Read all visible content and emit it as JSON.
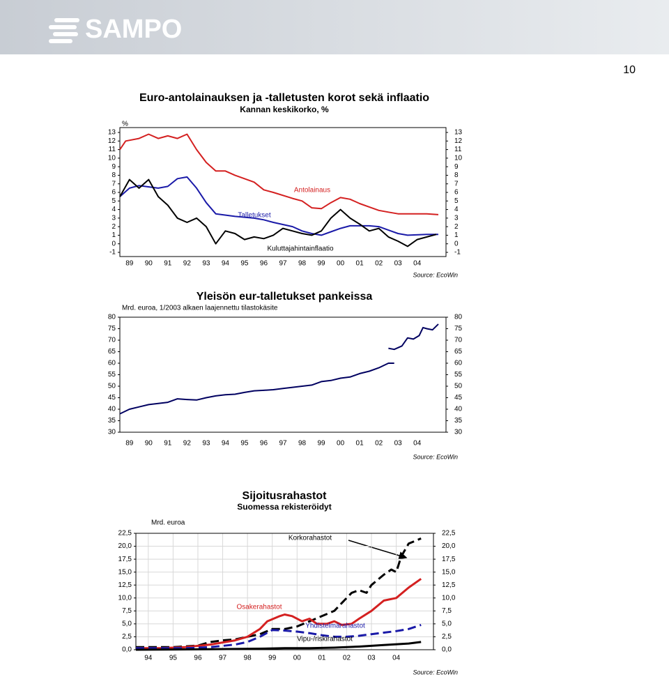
{
  "header": {
    "logo": "SAMPO",
    "page_number": "10"
  },
  "chart_data": [
    {
      "type": "line",
      "title": "Euro-antolainauksen ja -talletusten korot sekä inflaatio",
      "subtitle": "Kannan keskikorko, %",
      "ylabel": "%",
      "source": "Source: EcoWin",
      "xlim": [
        1989,
        2006
      ],
      "ylim": [
        -1,
        13
      ],
      "yticks": [
        13,
        12,
        11,
        10,
        9,
        8,
        7,
        6,
        5,
        4,
        3,
        2,
        1,
        0,
        -1
      ],
      "grid": false,
      "right_axis": true,
      "xticks": [
        {
          "value": 1989.5,
          "label": "89"
        },
        {
          "value": 1990.5,
          "label": "90"
        },
        {
          "value": 1991.5,
          "label": "91"
        },
        {
          "value": 1992.5,
          "label": "92"
        },
        {
          "value": 1993.5,
          "label": "93"
        },
        {
          "value": 1994.5,
          "label": "94"
        },
        {
          "value": 1995.5,
          "label": "95"
        },
        {
          "value": 1996.5,
          "label": "96"
        },
        {
          "value": 1997.5,
          "label": "97"
        },
        {
          "value": 1998.5,
          "label": "98"
        },
        {
          "value": 1999.5,
          "label": "99"
        },
        {
          "value": 2000.5,
          "label": "00"
        },
        {
          "value": 2001.5,
          "label": "01"
        },
        {
          "value": 2002.5,
          "label": "02"
        },
        {
          "value": 2003.5,
          "label": "03"
        },
        {
          "value": 2004.5,
          "label": "04"
        }
      ],
      "series": [
        {
          "name": "Antolainaus",
          "color": "#d42020",
          "dash": false,
          "x": [
            1989.0,
            1989.3,
            1990.0,
            1990.5,
            1991.0,
            1991.5,
            1992.0,
            1992.5,
            1993.0,
            1993.5,
            1994.0,
            1994.5,
            1995.0,
            1996.0,
            1996.5,
            1997.0,
            1998.0,
            1998.5,
            1999.0,
            1999.5,
            2000.0,
            2000.5,
            2001.0,
            2001.5,
            2002.0,
            2002.5,
            2003.0,
            2003.5,
            2004.0,
            2005.0,
            2005.6
          ],
          "values": [
            11,
            12,
            12.3,
            12.8,
            12.3,
            12.6,
            12.3,
            12.8,
            11,
            9.5,
            8.5,
            8.5,
            8.0,
            7.2,
            6.3,
            6.0,
            5.3,
            5.0,
            4.2,
            4.1,
            4.8,
            5.4,
            5.2,
            4.7,
            4.3,
            3.9,
            3.7,
            3.5,
            3.5,
            3.5,
            3.4
          ]
        },
        {
          "name": "Talletukset",
          "color": "#1a1aa8",
          "dash": false,
          "x": [
            1989.0,
            1989.5,
            1990.0,
            1991.0,
            1991.5,
            1992.0,
            1992.5,
            1993.0,
            1993.5,
            1994.0,
            1995.0,
            1996.0,
            1996.5,
            1997.0,
            1998.0,
            1998.5,
            1999.0,
            1999.5,
            2000.0,
            2000.5,
            2001.0,
            2002.0,
            2002.5,
            2003.0,
            2003.5,
            2004.0,
            2005.0,
            2005.6
          ],
          "values": [
            5.5,
            6.5,
            6.8,
            6.5,
            6.7,
            7.6,
            7.8,
            6.5,
            4.8,
            3.5,
            3.2,
            3.0,
            2.8,
            2.5,
            2.0,
            1.5,
            1.2,
            1.0,
            1.4,
            1.8,
            2.1,
            2.1,
            2.0,
            1.6,
            1.2,
            1.0,
            1.1,
            1.1
          ]
        },
        {
          "name": "Kuluttajahintainflaatio",
          "color": "#000000",
          "dash": false,
          "x": [
            1989.0,
            1989.5,
            1990.0,
            1990.5,
            1991.0,
            1991.5,
            1992.0,
            1992.5,
            1993.0,
            1993.5,
            1994.0,
            1994.5,
            1995.0,
            1995.5,
            1996.0,
            1996.5,
            1997.0,
            1997.5,
            1998.0,
            1998.5,
            1999.0,
            1999.5,
            2000.0,
            2000.5,
            2001.0,
            2001.5,
            2002.0,
            2002.5,
            2003.0,
            2003.5,
            2004.0,
            2004.5,
            2005.0,
            2005.5
          ],
          "values": [
            5.5,
            7.5,
            6.5,
            7.5,
            5.5,
            4.5,
            3.0,
            2.5,
            3.0,
            2.0,
            0.0,
            1.5,
            1.2,
            0.5,
            0.8,
            0.6,
            1.0,
            1.8,
            1.5,
            1.2,
            1.0,
            1.5,
            3.0,
            4.0,
            3.0,
            2.3,
            1.5,
            1.8,
            0.8,
            0.3,
            -0.3,
            0.5,
            0.8,
            1.1
          ]
        }
      ]
    },
    {
      "type": "line",
      "title": "Yleisön eur-talletukset pankeissa",
      "subtitle": "Mrd. euroa, 1/2003 alkaen laajennettu tilastokäsite",
      "source": "Source: EcoWin",
      "xlim": [
        1989,
        2006
      ],
      "ylim": [
        30,
        80
      ],
      "yticks": [
        80,
        75,
        70,
        65,
        60,
        55,
        50,
        45,
        40,
        35,
        30
      ],
      "grid": false,
      "right_axis": true,
      "xticks": [
        {
          "value": 1989.5,
          "label": "89"
        },
        {
          "value": 1990.5,
          "label": "90"
        },
        {
          "value": 1991.5,
          "label": "91"
        },
        {
          "value": 1992.5,
          "label": "92"
        },
        {
          "value": 1993.5,
          "label": "93"
        },
        {
          "value": 1994.5,
          "label": "94"
        },
        {
          "value": 1995.5,
          "label": "95"
        },
        {
          "value": 1996.5,
          "label": "96"
        },
        {
          "value": 1997.5,
          "label": "97"
        },
        {
          "value": 1998.5,
          "label": "98"
        },
        {
          "value": 1999.5,
          "label": "99"
        },
        {
          "value": 2000.5,
          "label": "00"
        },
        {
          "value": 2001.5,
          "label": "01"
        },
        {
          "value": 2002.5,
          "label": "02"
        },
        {
          "value": 2003.5,
          "label": "03"
        },
        {
          "value": 2004.5,
          "label": "04"
        }
      ],
      "series": [
        {
          "color": "#000060",
          "dash": false,
          "x": [
            1989.0,
            1989.5,
            1990.0,
            1990.5,
            1991.0,
            1991.5,
            1992.0,
            1992.5,
            1993.0,
            1993.5,
            1994.0,
            1994.5,
            1995.0,
            1995.5,
            1996.0,
            1996.5,
            1997.0,
            1997.5,
            1998.0,
            1998.5,
            1999.0,
            1999.5,
            2000.0,
            2000.5,
            2001.0,
            2001.5,
            2002.0,
            2002.5,
            2003.0,
            2003.3
          ],
          "values": [
            38,
            40,
            41,
            42,
            42.5,
            43,
            44.5,
            44.2,
            44,
            45,
            45.8,
            46.3,
            46.5,
            47.3,
            48,
            48.2,
            48.5,
            49,
            49.5,
            50,
            50.5,
            52,
            52.5,
            53.5,
            54,
            55.5,
            56.5,
            58,
            60,
            60
          ]
        },
        {
          "color": "#000060",
          "dash": false,
          "x": [
            2003.0,
            2003.3,
            2003.7,
            2004.0,
            2004.3,
            2004.6,
            2004.8,
            2005.0,
            2005.3,
            2005.6
          ],
          "values": [
            66.5,
            66,
            67.5,
            71,
            70.5,
            72,
            75.5,
            75,
            74.5,
            77
          ]
        }
      ]
    },
    {
      "type": "line",
      "title": "Sijoitusrahastot",
      "subtitle": "Suomessa rekisteröidyt",
      "ylabel": "Mrd. euroa",
      "source": "Source: EcoWin",
      "xlim": [
        1994,
        2006
      ],
      "ylim": [
        0,
        22.5
      ],
      "grid": true,
      "right_axis": true,
      "yticks": [
        {
          "value": 22.5,
          "label": "22,5"
        },
        {
          "value": 20,
          "label": "20,0"
        },
        {
          "value": 17.5,
          "label": "17,5"
        },
        {
          "value": 15,
          "label": "15,0"
        },
        {
          "value": 12.5,
          "label": "12,5"
        },
        {
          "value": 10,
          "label": "10,0"
        },
        {
          "value": 7.5,
          "label": "7,5"
        },
        {
          "value": 5,
          "label": "5,0"
        },
        {
          "value": 2.5,
          "label": "2,5"
        },
        {
          "value": 0,
          "label": "0,0"
        }
      ],
      "xticks": [
        {
          "value": 1994.5,
          "label": "94"
        },
        {
          "value": 1995.5,
          "label": "95"
        },
        {
          "value": 1996.5,
          "label": "96"
        },
        {
          "value": 1997.5,
          "label": "97"
        },
        {
          "value": 1998.5,
          "label": "98"
        },
        {
          "value": 1999.5,
          "label": "99"
        },
        {
          "value": 2000.5,
          "label": "00"
        },
        {
          "value": 2001.5,
          "label": "01"
        },
        {
          "value": 2002.5,
          "label": "02"
        },
        {
          "value": 2003.5,
          "label": "03"
        },
        {
          "value": 2004.5,
          "label": "04"
        }
      ],
      "series": [
        {
          "name": "Korkorahastot",
          "color": "#000000",
          "dash": true,
          "x": [
            1994,
            1995.5,
            1996.5,
            1997,
            1997.5,
            1998,
            1998.5,
            1999,
            1999.5,
            2000,
            2000.5,
            2001,
            2001.5,
            2002,
            2002.3,
            2002.7,
            2003,
            2003.3,
            2003.5,
            2004,
            2004.3,
            2004.5,
            2004.7,
            2005,
            2005.5
          ],
          "values": [
            0.5,
            0.5,
            0.8,
            1.5,
            1.8,
            2,
            2.5,
            3,
            4,
            4,
            4.5,
            5.5,
            6.5,
            7.5,
            9,
            11,
            11.5,
            11,
            12.5,
            14.5,
            15.5,
            15,
            18,
            20.5,
            21.5
          ]
        },
        {
          "name": "Osakerahastot",
          "color": "#d42020",
          "dash": false,
          "x": [
            1994,
            1995,
            1996,
            1997,
            1998,
            1998.5,
            1999,
            1999.3,
            1999.8,
            2000,
            2000.3,
            2000.7,
            2001,
            2001.3,
            2001.7,
            2002,
            2002.3,
            2002.7,
            2003,
            2003.5,
            2004,
            2004.5,
            2005,
            2005.5
          ],
          "values": [
            0.3,
            0.3,
            0.5,
            1,
            1.8,
            2.5,
            4,
            5.5,
            6.5,
            6.8,
            6.5,
            5.5,
            6,
            5,
            5,
            5.5,
            4.8,
            5,
            6,
            7.5,
            9.5,
            10,
            12,
            13.7
          ]
        },
        {
          "name": "Yhdistelmärahastot",
          "color": "#1a1aa8",
          "dash": true,
          "x": [
            1994,
            1996,
            1997,
            1998,
            1998.5,
            1999,
            1999.5,
            2000,
            2000.5,
            2001,
            2001.5,
            2002,
            2002.5,
            2003,
            2003.5,
            2004,
            2004.5,
            2005,
            2005.5
          ],
          "values": [
            0.3,
            0.3,
            0.5,
            1,
            1.5,
            2.5,
            3.8,
            3.7,
            3.5,
            3.2,
            2.8,
            2.5,
            2.5,
            2.7,
            3,
            3.3,
            3.6,
            4,
            4.8
          ]
        },
        {
          "name": "Vipu-/riskirahastot",
          "color": "#000000",
          "dash": false,
          "x": [
            1994,
            1997,
            1999,
            2000,
            2001,
            2002,
            2003,
            2004,
            2005,
            2005.5
          ],
          "values": [
            0,
            0.1,
            0.2,
            0.3,
            0.3,
            0.4,
            0.6,
            0.9,
            1.2,
            1.5
          ]
        }
      ]
    }
  ]
}
